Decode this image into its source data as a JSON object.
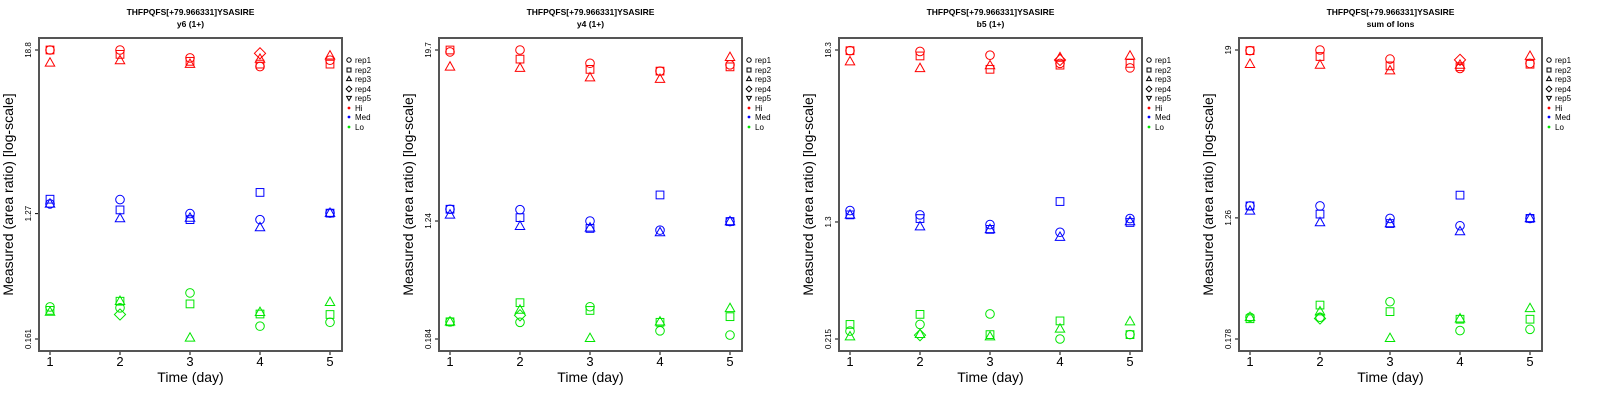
{
  "chart_data": {
    "type": "scatter",
    "legend_placement": "right",
    "legend": {
      "reps": [
        {
          "label": "rep1",
          "marker": "circle"
        },
        {
          "label": "rep2",
          "marker": "square"
        },
        {
          "label": "rep3",
          "marker": "triangle-up"
        },
        {
          "label": "rep4",
          "marker": "diamond"
        },
        {
          "label": "rep5",
          "marker": "triangle-down"
        }
      ],
      "levels": [
        {
          "label": "Hi",
          "color": "#ff0000"
        },
        {
          "label": "Med",
          "color": "#0000ff"
        },
        {
          "label": "Lo",
          "color": "#00e600"
        }
      ]
    },
    "panels": [
      {
        "title": "THFPQFS[+79.966331]YSASIRE",
        "subtitle": "y6 (1+)",
        "xlabel": "Time (day)",
        "ylabel": "Measured (area ratio) [log-scale]",
        "x": [
          1,
          2,
          3,
          4,
          5
        ],
        "yscale": "log",
        "ylim": [
          0.161,
          18.8
        ],
        "yticks": [
          "18.8",
          "1.27",
          "0.161"
        ],
        "series": [
          {
            "level": "Hi",
            "rep": "rep1",
            "values": [
              18.8,
              18.8,
              16.5,
              14.3,
              15.9
            ]
          },
          {
            "level": "Hi",
            "rep": "rep2",
            "values": [
              18.8,
              17.5,
              15.6,
              14.9,
              14.9
            ]
          },
          {
            "level": "Hi",
            "rep": "rep3",
            "values": [
              15.2,
              15.8,
              14.9,
              16.2,
              17.1
            ]
          },
          {
            "level": "Hi",
            "rep": "rep4",
            "values": [
              null,
              null,
              null,
              17.8,
              null
            ]
          },
          {
            "level": "Med",
            "rep": "rep1",
            "values": [
              1.49,
              1.6,
              1.27,
              1.15,
              1.28
            ]
          },
          {
            "level": "Med",
            "rep": "rep2",
            "values": [
              1.61,
              1.35,
              1.15,
              1.8,
              1.28
            ]
          },
          {
            "level": "Med",
            "rep": "rep3",
            "values": [
              1.49,
              1.17,
              1.18,
              1.01,
              1.28
            ]
          },
          {
            "level": "Lo",
            "rep": "rep1",
            "values": [
              0.273,
              0.269,
              0.344,
              0.199,
              0.212
            ]
          },
          {
            "level": "Lo",
            "rep": "rep2",
            "values": [
              0.258,
              0.3,
              0.287,
              0.243,
              0.241
            ]
          },
          {
            "level": "Lo",
            "rep": "rep3",
            "values": [
              0.251,
              0.3,
              0.164,
              0.25,
              0.295
            ]
          },
          {
            "level": "Lo",
            "rep": "rep4",
            "values": [
              null,
              0.241,
              null,
              null,
              null
            ]
          }
        ]
      },
      {
        "title": "THFPQFS[+79.966331]YSASIRE",
        "subtitle": "y4 (1+)",
        "xlabel": "Time (day)",
        "ylabel": "Measured (area ratio) [log-scale]",
        "x": [
          1,
          2,
          3,
          4,
          5
        ],
        "yscale": "log",
        "ylim": [
          0.184,
          19.7
        ],
        "yticks": [
          "19.7",
          "1.24",
          "0.184"
        ],
        "series": [
          {
            "level": "Hi",
            "rep": "rep1",
            "values": [
              19.1,
              19.7,
              15.9,
              14.0,
              15.5
            ]
          },
          {
            "level": "Hi",
            "rep": "rep2",
            "values": [
              19.7,
              17.0,
              14.4,
              14.0,
              15.0
            ]
          },
          {
            "level": "Hi",
            "rep": "rep3",
            "values": [
              15.0,
              14.7,
              12.6,
              12.3,
              17.5
            ]
          },
          {
            "level": "Med",
            "rep": "rep1",
            "values": [
              1.5,
              1.49,
              1.24,
              1.07,
              1.23
            ]
          },
          {
            "level": "Med",
            "rep": "rep2",
            "values": [
              1.5,
              1.31,
              1.1,
              1.89,
              1.23
            ]
          },
          {
            "level": "Med",
            "rep": "rep3",
            "values": [
              1.37,
              1.14,
              1.11,
              1.03,
              1.23
            ]
          },
          {
            "level": "Lo",
            "rep": "rep1",
            "values": [
              0.243,
              0.241,
              0.31,
              0.21,
              0.196
            ]
          },
          {
            "level": "Lo",
            "rep": "rep2",
            "values": [
              0.243,
              0.331,
              0.292,
              0.241,
              0.264
            ]
          },
          {
            "level": "Lo",
            "rep": "rep3",
            "values": [
              0.243,
              0.294,
              0.186,
              0.243,
              0.302
            ]
          },
          {
            "level": "Lo",
            "rep": "rep4",
            "values": [
              null,
              0.27,
              null,
              null,
              null
            ]
          }
        ]
      },
      {
        "title": "THFPQFS[+79.966331]YSASIRE",
        "subtitle": "b5 (1+)",
        "xlabel": "Time (day)",
        "ylabel": "Measured (area ratio) [log-scale]",
        "x": [
          1,
          2,
          3,
          4,
          5
        ],
        "yscale": "log",
        "ylim": [
          0.215,
          18.3
        ],
        "yticks": [
          "18.3",
          "1.3",
          "0.215"
        ],
        "series": [
          {
            "level": "Hi",
            "rep": "rep1",
            "values": [
              18.1,
              17.9,
              16.9,
              14.9,
              13.9
            ]
          },
          {
            "level": "Hi",
            "rep": "rep2",
            "values": [
              18.1,
              16.7,
              13.6,
              14.5,
              14.9
            ]
          },
          {
            "level": "Hi",
            "rep": "rep3",
            "values": [
              15.3,
              13.8,
              14.4,
              16.3,
              16.7
            ]
          },
          {
            "level": "Hi",
            "rep": "rep4",
            "values": [
              null,
              null,
              null,
              15.7,
              null
            ]
          },
          {
            "level": "Med",
            "rep": "rep1",
            "values": [
              1.55,
              1.45,
              1.25,
              1.11,
              1.37
            ]
          },
          {
            "level": "Med",
            "rep": "rep2",
            "values": [
              1.45,
              1.37,
              1.16,
              1.78,
              1.29
            ]
          },
          {
            "level": "Med",
            "rep": "rep3",
            "values": [
              1.45,
              1.21,
              1.16,
              1.03,
              1.31
            ]
          },
          {
            "level": "Lo",
            "rep": "rep1",
            "values": [
              0.243,
              0.269,
              0.316,
              0.215,
              0.23
            ]
          },
          {
            "level": "Lo",
            "rep": "rep2",
            "values": [
              0.269,
              0.314,
              0.23,
              0.284,
              0.23
            ]
          },
          {
            "level": "Lo",
            "rep": "rep3",
            "values": [
              0.223,
              0.231,
              0.223,
              0.251,
              0.281
            ]
          },
          {
            "level": "Lo",
            "rep": "rep4",
            "values": [
              null,
              0.228,
              null,
              null,
              null
            ]
          }
        ]
      },
      {
        "title": "THFPQFS[+79.966331]YSASIRE",
        "subtitle": "sum of Ions",
        "xlabel": "Time (day)",
        "ylabel": "Measured (area ratio) [log-scale]",
        "x": [
          1,
          2,
          3,
          4,
          5
        ],
        "yscale": "log",
        "ylim": [
          0.178,
          19
        ],
        "yticks": [
          "19",
          "1.26",
          "0.178"
        ],
        "series": [
          {
            "level": "Hi",
            "rep": "rep1",
            "values": [
              18.8,
              19.0,
              16.4,
              14.1,
              15.3
            ]
          },
          {
            "level": "Hi",
            "rep": "rep2",
            "values": [
              18.8,
              17.1,
              14.7,
              14.5,
              15.1
            ]
          },
          {
            "level": "Hi",
            "rep": "rep3",
            "values": [
              15.1,
              14.9,
              13.6,
              14.9,
              17.2
            ]
          },
          {
            "level": "Hi",
            "rep": "rep4",
            "values": [
              null,
              null,
              null,
              16.2,
              null
            ]
          },
          {
            "level": "Med",
            "rep": "rep1",
            "values": [
              1.53,
              1.53,
              1.25,
              1.11,
              1.25
            ]
          },
          {
            "level": "Med",
            "rep": "rep2",
            "values": [
              1.53,
              1.34,
              1.15,
              1.82,
              1.25
            ]
          },
          {
            "level": "Med",
            "rep": "rep3",
            "values": [
              1.41,
              1.17,
              1.15,
              1.01,
              1.25
            ]
          },
          {
            "level": "Lo",
            "rep": "rep1",
            "values": [
              0.253,
              0.253,
              0.325,
              0.204,
              0.208
            ]
          },
          {
            "level": "Lo",
            "rep": "rep2",
            "values": [
              0.247,
              0.308,
              0.277,
              0.245,
              0.245
            ]
          },
          {
            "level": "Lo",
            "rep": "rep3",
            "values": [
              0.253,
              0.277,
              0.18,
              0.247,
              0.292
            ]
          },
          {
            "level": "Lo",
            "rep": "rep4",
            "values": [
              null,
              0.248,
              null,
              null,
              null
            ]
          }
        ]
      }
    ]
  }
}
